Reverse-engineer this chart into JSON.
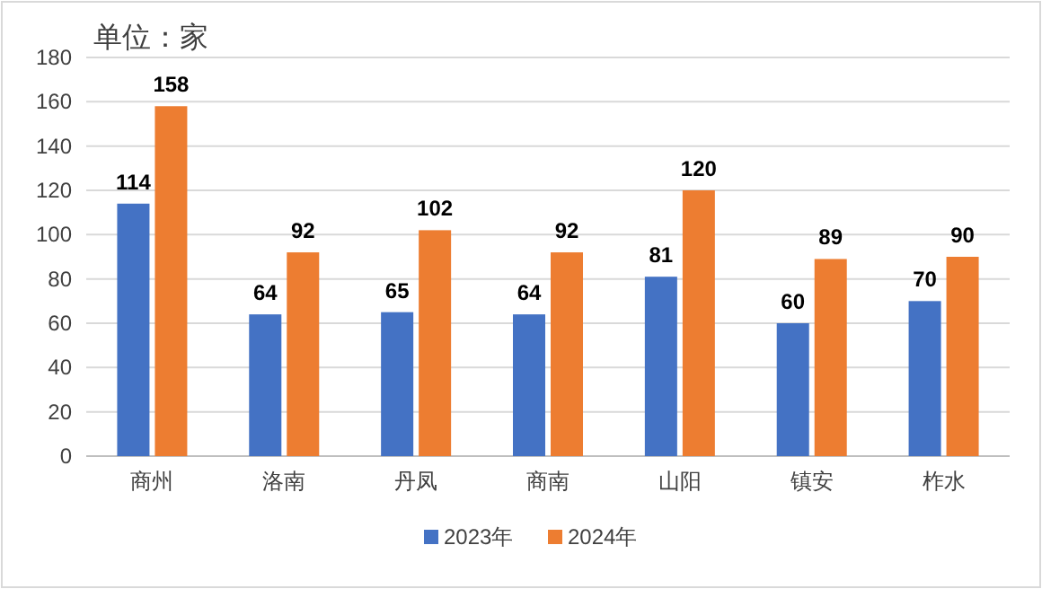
{
  "chart_data": {
    "type": "bar",
    "title": "单位：家",
    "categories": [
      "商州",
      "洛南",
      "丹凤",
      "商南",
      "山阳",
      "镇安",
      "柞水"
    ],
    "series": [
      {
        "name": "2023年",
        "color": "#4472c4",
        "values": [
          114,
          64,
          65,
          64,
          81,
          60,
          70
        ]
      },
      {
        "name": "2024年",
        "color": "#ed7d31",
        "values": [
          158,
          92,
          102,
          92,
          120,
          89,
          90
        ]
      }
    ],
    "ylim": [
      0,
      180
    ],
    "yticks": [
      0,
      20,
      40,
      60,
      80,
      100,
      120,
      140,
      160,
      180
    ],
    "grid": "y",
    "legend": "bottom",
    "data_labels": true
  }
}
